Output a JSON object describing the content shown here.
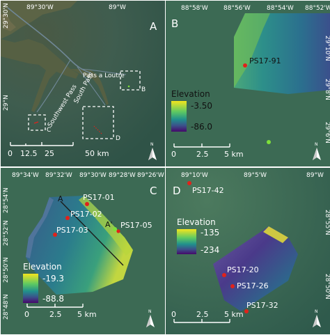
{
  "panels": {
    "A": {
      "letter": "A",
      "top_ticks": [
        "89°30'W",
        "89°W"
      ],
      "left_ticks": [
        "29°30'N",
        "29°N"
      ],
      "places": {
        "pass_a_loutre": "Pass a Loutre",
        "southwest_pass": "Southwest Pass",
        "south_pass": "South Pass"
      },
      "box_labels": [
        "B",
        "C",
        "D"
      ],
      "scale": {
        "ticks": [
          "0",
          "12.5",
          "25",
          "50 km"
        ]
      },
      "north": "N"
    },
    "B": {
      "letter": "B",
      "top_ticks": [
        "88°58'W",
        "88°56'W",
        "88°54'W",
        "88°52'W"
      ],
      "right_ticks": [
        "29°10'N",
        "29°8'N",
        "29°6'N"
      ],
      "sites": [
        {
          "id": "PS17-91"
        }
      ],
      "legend": {
        "title": "Elevation",
        "max": "-3.50",
        "min": "-86.0"
      },
      "scale": {
        "ticks": [
          "0",
          "2.5",
          "5 km"
        ]
      },
      "north": "N"
    },
    "C": {
      "letter": "C",
      "top_ticks": [
        "89°34'W",
        "89°32'W",
        "89°30'W",
        "89°28'W",
        "89°26'W"
      ],
      "left_ticks": [
        "28°54'N",
        "28°52'N",
        "28°50'N",
        "28°48'N"
      ],
      "sites": [
        {
          "id": "PS17-01"
        },
        {
          "id": "PS17-02"
        },
        {
          "id": "PS17-03"
        },
        {
          "id": "PS17-05"
        }
      ],
      "profile_labels": [
        "A",
        "A'"
      ],
      "legend": {
        "title": "Elevation",
        "max": "-19.3",
        "min": "-88.8"
      },
      "scale": {
        "ticks": [
          "0",
          "2.5",
          "5 km"
        ]
      },
      "north": "N"
    },
    "D": {
      "letter": "D",
      "top_ticks": [
        "89°10'W",
        "89°5'W",
        "89°W"
      ],
      "right_ticks": [
        "28°55'N",
        "28°50'N"
      ],
      "sites": [
        {
          "id": "PS17-42"
        },
        {
          "id": "PS17-20"
        },
        {
          "id": "PS17-26"
        },
        {
          "id": "PS17-32"
        }
      ],
      "legend": {
        "title": "Elevation",
        "max": "-135",
        "min": "-234"
      },
      "scale": {
        "ticks": [
          "0",
          "2.5",
          "5 km"
        ]
      },
      "north": "N"
    }
  },
  "colors": {
    "site_marker": "#e0221b",
    "highlight_marker": "#7ee03a",
    "ramp_high": "#f3e51e",
    "ramp_mid": "#21918c",
    "ramp_low": "#46086a",
    "seafloor": "#3c6a54"
  }
}
